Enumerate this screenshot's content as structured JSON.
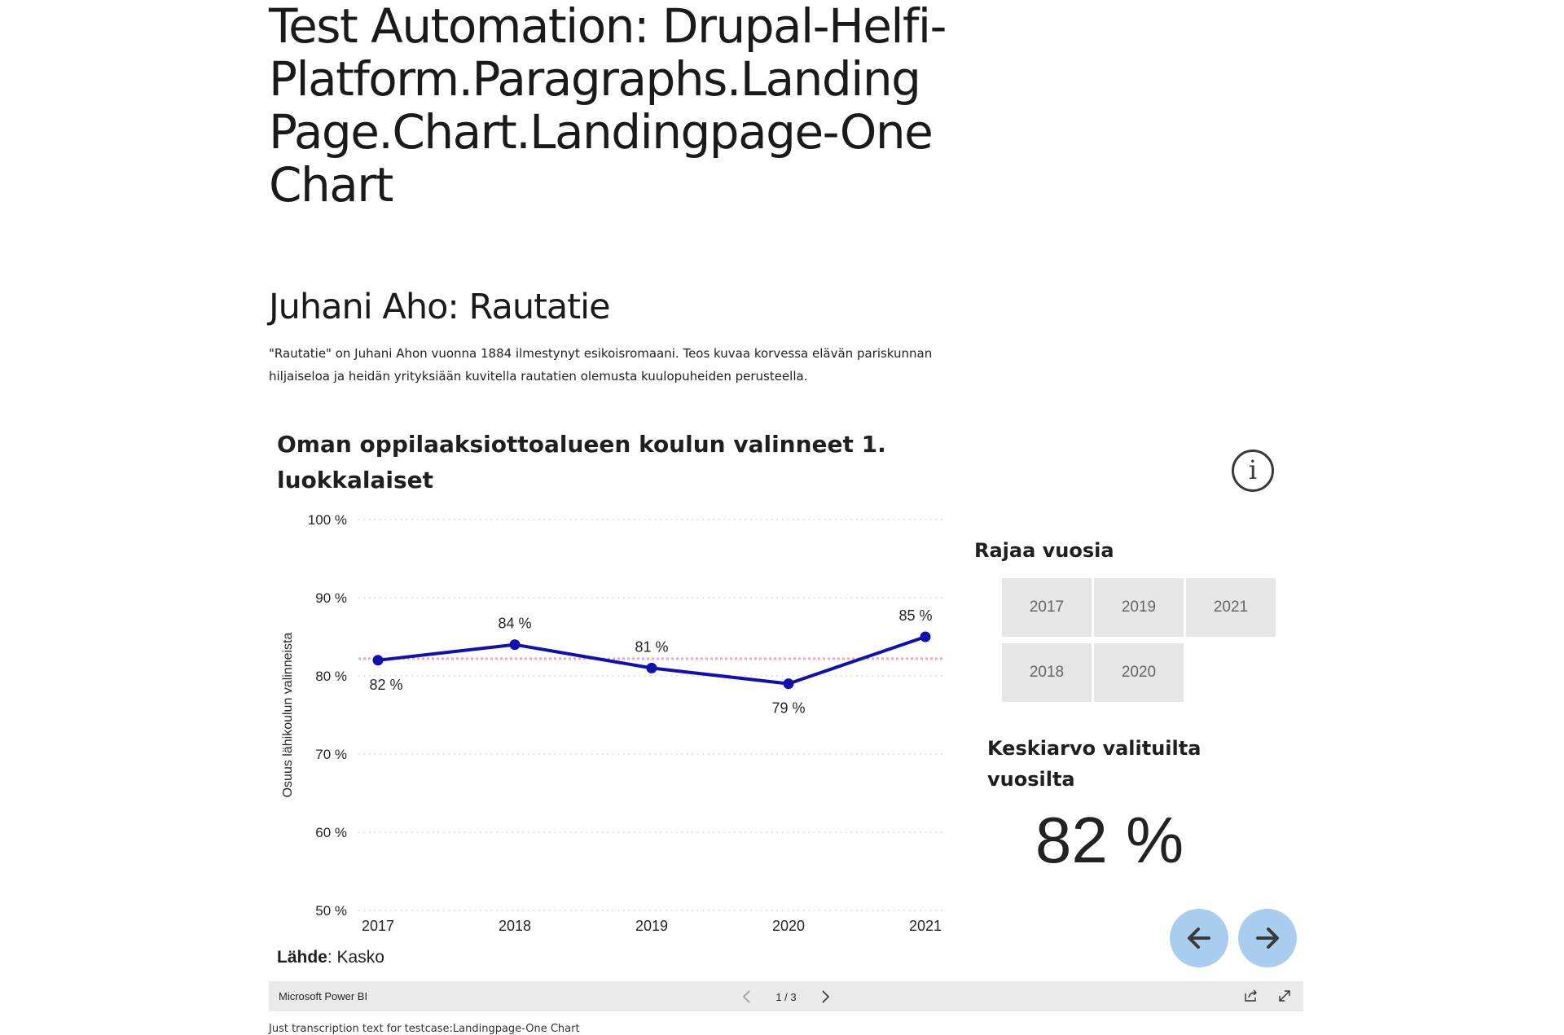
{
  "page": {
    "title": "Test Automation: Drupal-Helfi-Platform.Paragraphs.Landing Page.Chart.Landingpage-One Chart",
    "section_title": "Juhani Aho: Rautatie",
    "section_text": "\"Rautatie\" on Juhani Ahon vuonna 1884 ilmestynyt esikoisromaani. Teos kuvaa korvessa elävän pariskunnan hiljaiseloa ja heidän yrityksiään kuvitella rautatien olemusta kuulopuheiden perusteella.",
    "transcription": "Just transcription text for testcase:Landingpage-One Chart"
  },
  "report": {
    "title": "Oman oppilaaksiottoalueen koulun valinneet 1. luokkalaiset",
    "info_icon": "info-icon",
    "filter_title": "Rajaa vuosia",
    "years": [
      "2017",
      "2019",
      "2021",
      "2018",
      "2020"
    ],
    "average_title": "Keskiarvo valituilta vuosilta",
    "average_value": "82 %",
    "source_label": "Lähde",
    "source_value": ": Kasko",
    "prev_icon": "arrow-left-icon",
    "next_icon": "arrow-right-icon"
  },
  "powerbi": {
    "brand": "Microsoft Power BI",
    "page_indicator": "1 / 3"
  },
  "chart_data": {
    "type": "line",
    "title": "",
    "xlabel": "",
    "ylabel": "Osuus lähikoulun valinneista",
    "x": [
      "2017",
      "2018",
      "2019",
      "2020",
      "2021"
    ],
    "series": [
      {
        "values": [
          82,
          84,
          81,
          79,
          85
        ],
        "labels": [
          "82 %",
          "84 %",
          "81 %",
          "79 %",
          "85 %"
        ],
        "color": "#0f0fb4"
      }
    ],
    "average_line": {
      "value": 82.2,
      "color": "#f0a6c8"
    },
    "yticks": [
      100,
      90,
      80,
      70,
      60,
      50
    ],
    "ytick_labels": [
      "100 %",
      "90 %",
      "80 %",
      "70 %",
      "60 %",
      "50 %"
    ],
    "ylim": [
      50,
      100
    ],
    "grid": true
  }
}
